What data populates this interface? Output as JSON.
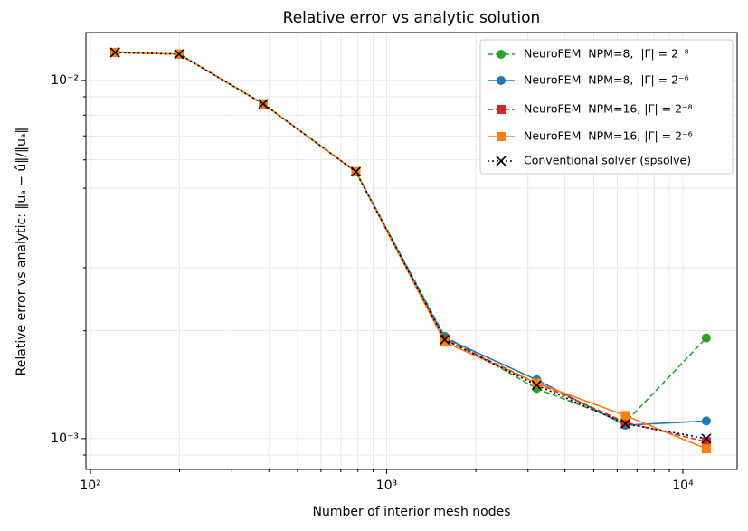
{
  "chart_data": {
    "type": "line",
    "title": "Relative error vs analytic solution",
    "x_label": "Number of interior mesh nodes",
    "y_label": "Relative error vs analytic: ‖uₐ − û‖/‖uₐ‖",
    "xscale": "log",
    "yscale": "log",
    "grid": true,
    "legend": "upper right",
    "xlim": [
      96.5,
      15250
    ],
    "ylim": [
      0.00082,
      0.0136
    ],
    "xticks": [
      {
        "value": 100,
        "label": "10²"
      },
      {
        "value": 1000,
        "label": "10³"
      },
      {
        "value": 10000,
        "label": "10⁴"
      }
    ],
    "yticks": [
      {
        "value": 0.001,
        "label": "10⁻³"
      },
      {
        "value": 0.01,
        "label": "10⁻²"
      }
    ],
    "xminorticks": [
      200,
      300,
      400,
      500,
      600,
      700,
      800,
      900,
      2000,
      3000,
      4000,
      5000,
      6000,
      7000,
      8000,
      9000
    ],
    "yminorticks": [
      0.0009,
      0.002,
      0.003,
      0.004,
      0.005,
      0.006,
      0.007,
      0.008,
      0.009
    ],
    "x": [
      121,
      199,
      383,
      787,
      1570,
      3210,
      6400,
      12000
    ],
    "series": [
      {
        "name": "NeuroFEM  NPM=8,  |Γ| = 2⁻⁸",
        "color": "#2ca02c",
        "marker": "circle",
        "dash": "dashed",
        "values": [
          0.01197,
          0.01184,
          0.0086,
          0.00556,
          0.00193,
          0.00138,
          0.00111,
          0.00191
        ]
      },
      {
        "name": "NeuroFEM  NPM=8,  |Γ| = 2⁻⁶",
        "color": "#1f77b4",
        "marker": "circle",
        "dash": "solid",
        "values": [
          0.01197,
          0.01184,
          0.0086,
          0.00556,
          0.00191,
          0.00146,
          0.00109,
          0.00112
        ]
      },
      {
        "name": "NeuroFEM  NPM=16, |Γ| = 2⁻⁸",
        "color": "#d62728",
        "marker": "square",
        "dash": "dashed",
        "values": [
          0.01197,
          0.01184,
          0.0086,
          0.00556,
          0.00189,
          0.00143,
          0.00111,
          0.00098
        ]
      },
      {
        "name": "NeuroFEM  NPM=16, |Γ| = 2⁻⁶",
        "color": "#ff7f0e",
        "marker": "square",
        "dash": "solid",
        "values": [
          0.01197,
          0.01184,
          0.0086,
          0.00556,
          0.00186,
          0.00143,
          0.00116,
          0.000937
        ]
      },
      {
        "name": "Conventional solver (spsolve)",
        "color": "#000000",
        "marker": "x",
        "dash": "dotted",
        "values": [
          0.01197,
          0.01184,
          0.0086,
          0.00556,
          0.00189,
          0.00141,
          0.0011,
          0.001
        ]
      }
    ]
  }
}
